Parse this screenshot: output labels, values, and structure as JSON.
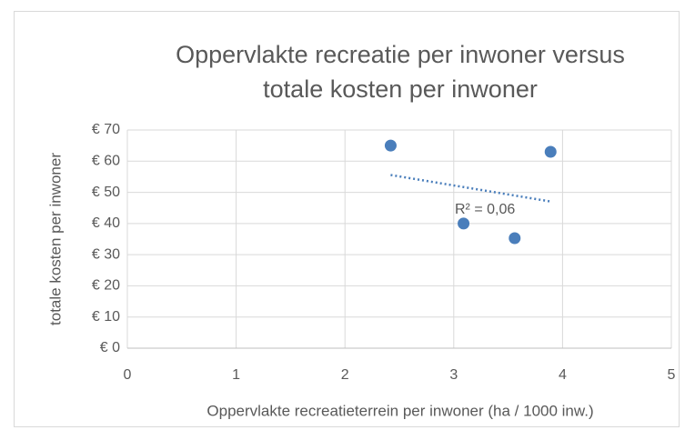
{
  "chart_data": {
    "type": "scatter",
    "title": [
      "Oppervlakte recreatie per inwoner versus",
      "totale kosten per inwoner"
    ],
    "x_label": "Oppervlakte recreatieterrein per inwoner (ha / 1000 inw.)",
    "y_label": "totale kosten per inwoner",
    "series": [
      {
        "name": "totale kosten per inwoner",
        "color": "#4a7ebb",
        "x": [
          2.42,
          3.09,
          3.56,
          3.89
        ],
        "values": [
          65,
          40,
          35.3,
          63
        ]
      }
    ],
    "trendline": {
      "type": "linear",
      "label": "R² = 0,06",
      "color": "#4a7ebb"
    },
    "xlim": [
      0,
      5
    ],
    "xticks": [
      0,
      1,
      2,
      3,
      4,
      5
    ],
    "ylim": [
      0,
      70
    ],
    "yticks": [
      {
        "value": 0,
        "label": "€ 0"
      },
      {
        "value": 10,
        "label": "€ 10"
      },
      {
        "value": 20,
        "label": "€ 20"
      },
      {
        "value": 30,
        "label": "€ 30"
      },
      {
        "value": 40,
        "label": "€ 40"
      },
      {
        "value": 50,
        "label": "€ 50"
      },
      {
        "value": 60,
        "label": "€ 60"
      },
      {
        "value": 70,
        "label": "€ 70"
      }
    ],
    "grid": true
  }
}
